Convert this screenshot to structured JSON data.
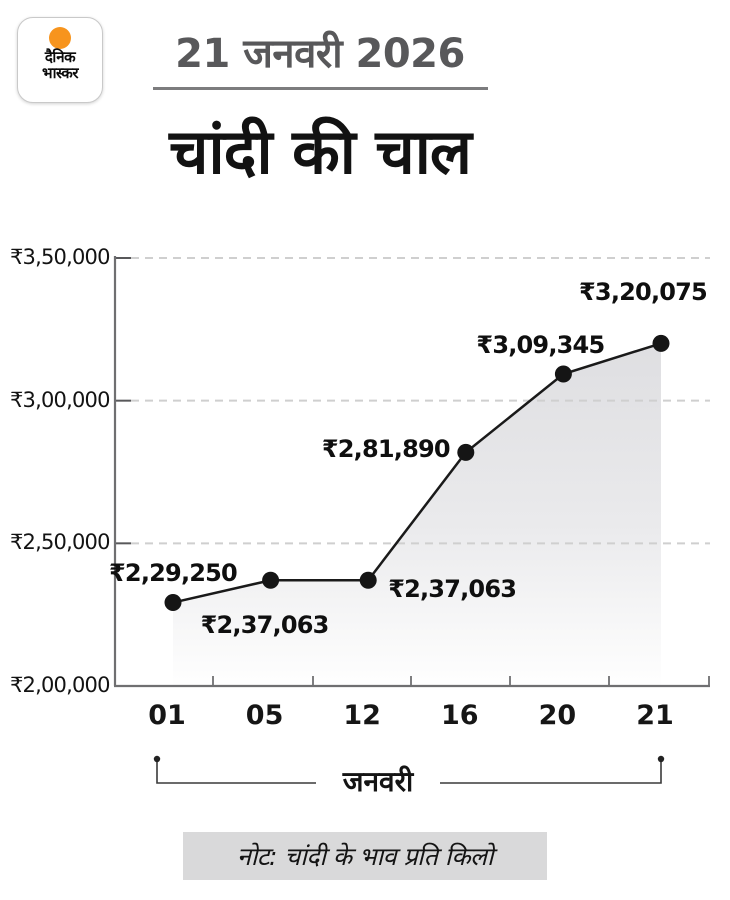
{
  "brand": {
    "name": "dainik-bhaskar",
    "logo_line1": "दैनिक",
    "logo_line2": "भास्कर",
    "logo_dot_color": "#F7941D"
  },
  "header": {
    "date": "21 जनवरी 2026",
    "title": "चांदी की चाल"
  },
  "chart_data": {
    "type": "line",
    "title": "चांदी की चाल",
    "x": [
      "01",
      "05",
      "12",
      "16",
      "20",
      "21"
    ],
    "xlabel": "जनवरी",
    "series": [
      {
        "name": "चांदी का भाव",
        "values": [
          229250,
          237063,
          237063,
          281890,
          309345,
          320075
        ]
      }
    ],
    "point_labels": [
      "₹2,29,250",
      "₹2,37,063",
      "₹2,37,063",
      "₹2,81,890",
      "₹3,09,345",
      "₹3,20,075"
    ],
    "ylim": [
      200000,
      350000
    ],
    "y_ticks": [
      {
        "value": 350000,
        "label": "₹3,50,000"
      },
      {
        "value": 300000,
        "label": "₹3,00,000"
      },
      {
        "value": 250000,
        "label": "₹2,50,000"
      },
      {
        "value": 200000,
        "label": "₹2,00,000"
      }
    ],
    "grid": "dashed-horizontal",
    "legend": "none",
    "line_color": "#1a1a1a",
    "marker": "filled-circle",
    "area_fill": "gray-gradient-to-white"
  },
  "footer": {
    "note": "नोट: चांदी के भाव प्रति किलो"
  }
}
